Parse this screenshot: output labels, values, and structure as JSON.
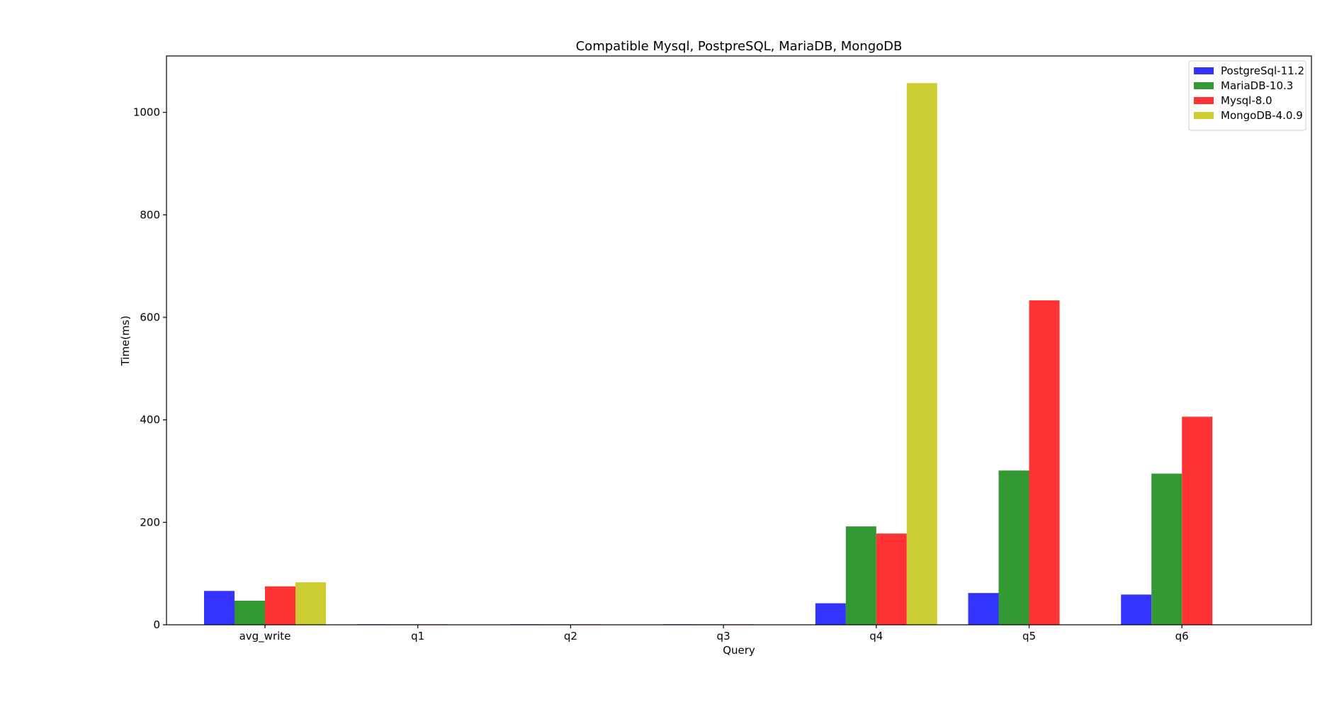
{
  "chart_data": {
    "type": "bar",
    "title": "Compatible Mysql, PostpreSQL, MariaDB, MongoDB",
    "xlabel": "Query",
    "ylabel": "Time(ms)",
    "categories": [
      "avg_write",
      "q1",
      "q2",
      "q3",
      "q4",
      "q5",
      "q6"
    ],
    "ylim": [
      0,
      1110
    ],
    "yticks": [
      0,
      200,
      400,
      600,
      800,
      1000
    ],
    "grid": false,
    "legend_position": "top-right",
    "series": [
      {
        "name": "PostgreSql-11.2",
        "color": "#3333ff",
        "values": [
          66,
          1,
          1,
          1,
          42,
          62,
          59
        ]
      },
      {
        "name": "MariaDB-10.3",
        "color": "#339933",
        "values": [
          47,
          1,
          1,
          1,
          192,
          301,
          295
        ]
      },
      {
        "name": "Mysql-8.0",
        "color": "#ff3333",
        "values": [
          75,
          1,
          1,
          1,
          178,
          633,
          406
        ]
      },
      {
        "name": "MongoDB-4.0.9",
        "color": "#cccc33",
        "values": [
          83,
          0,
          0,
          0,
          1057,
          0,
          0
        ]
      }
    ]
  }
}
